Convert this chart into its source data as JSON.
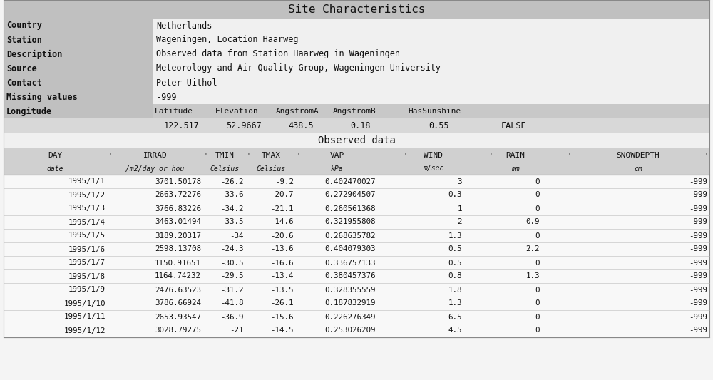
{
  "title_site": "Site Characteristics",
  "title_observed": "Observed data",
  "site_info": [
    [
      "Country",
      "Netherlands"
    ],
    [
      "Station",
      "Wageningen, Location Haarweg"
    ],
    [
      "Description",
      "Observed data from Station Haarweg in Wageningen"
    ],
    [
      "Source",
      "Meteorology and Air Quality Group, Wageningen University"
    ],
    [
      "Contact",
      "Peter Uithol"
    ],
    [
      "Missing values",
      "-999"
    ],
    [
      "Longitude",
      ""
    ]
  ],
  "geo_headers": [
    "Latitude",
    "Elevation",
    "AngstromA",
    "AngstromB",
    "HasSunshine"
  ],
  "geo_values_row": [
    "122.517",
    "52.9667",
    "438.5",
    "0.18",
    "0.55",
    "FALSE"
  ],
  "data_col_names": [
    "DAY",
    "IRRAD",
    "TMIN",
    "TMAX",
    "VAP",
    "",
    "WIND",
    "",
    "RAIN",
    "",
    "SNOWDEPTH"
  ],
  "data_col_units": [
    "date",
    "/m2/day or hou",
    "Celsius",
    "Celsius",
    "kPa",
    "",
    "m/sec",
    "",
    "mm",
    "",
    "cm"
  ],
  "data_rows": [
    [
      "1995/1/1",
      "3701.50178",
      "-26.2",
      "-9.2",
      "0.402470027",
      "3",
      "0",
      "-999"
    ],
    [
      "1995/1/2",
      "2663.72276",
      "-33.6",
      "-20.7",
      "0.272904507",
      "0.3",
      "0",
      "-999"
    ],
    [
      "1995/1/3",
      "3766.83226",
      "-34.2",
      "-21.1",
      "0.260561368",
      "1",
      "0",
      "-999"
    ],
    [
      "1995/1/4",
      "3463.01494",
      "-33.5",
      "-14.6",
      "0.321955808",
      "2",
      "0.9",
      "-999"
    ],
    [
      "1995/1/5",
      "3189.20317",
      "-34",
      "-20.6",
      "0.268635782",
      "1.3",
      "0",
      "-999"
    ],
    [
      "1995/1/6",
      "2598.13708",
      "-24.3",
      "-13.6",
      "0.404079303",
      "0.5",
      "2.2",
      "-999"
    ],
    [
      "1995/1/7",
      "1150.91651",
      "-30.5",
      "-16.6",
      "0.336757133",
      "0.5",
      "0",
      "-999"
    ],
    [
      "1995/1/8",
      "1164.74232",
      "-29.5",
      "-13.4",
      "0.380457376",
      "0.8",
      "1.3",
      "-999"
    ],
    [
      "1995/1/9",
      "2476.63523",
      "-31.2",
      "-13.5",
      "0.328355559",
      "1.8",
      "0",
      "-999"
    ],
    [
      "1995/1/10",
      "3786.66924",
      "-41.8",
      "-26.1",
      "0.187832919",
      "1.3",
      "0",
      "-999"
    ],
    [
      "1995/1/11",
      "2653.93547",
      "-36.9",
      "-15.6",
      "0.226276349",
      "6.5",
      "0",
      "-999"
    ],
    [
      "1995/1/12",
      "3028.79275",
      "-21",
      "-14.5",
      "0.253026209",
      "4.5",
      "0",
      "-999"
    ]
  ],
  "bg_title": "#c0c0c0",
  "bg_site_label": "#c0c0c0",
  "bg_site_value": "#f0f0f0",
  "bg_geo_header": "#c8c8c8",
  "bg_geo_value": "#d8d8d8",
  "bg_obs_title": "#f0f0f0",
  "bg_col_header": "#d0d0d0",
  "bg_data_row": "#f8f8f8",
  "bg_white": "#f4f4f4",
  "line_color": "#888888",
  "text_dark": "#111111"
}
